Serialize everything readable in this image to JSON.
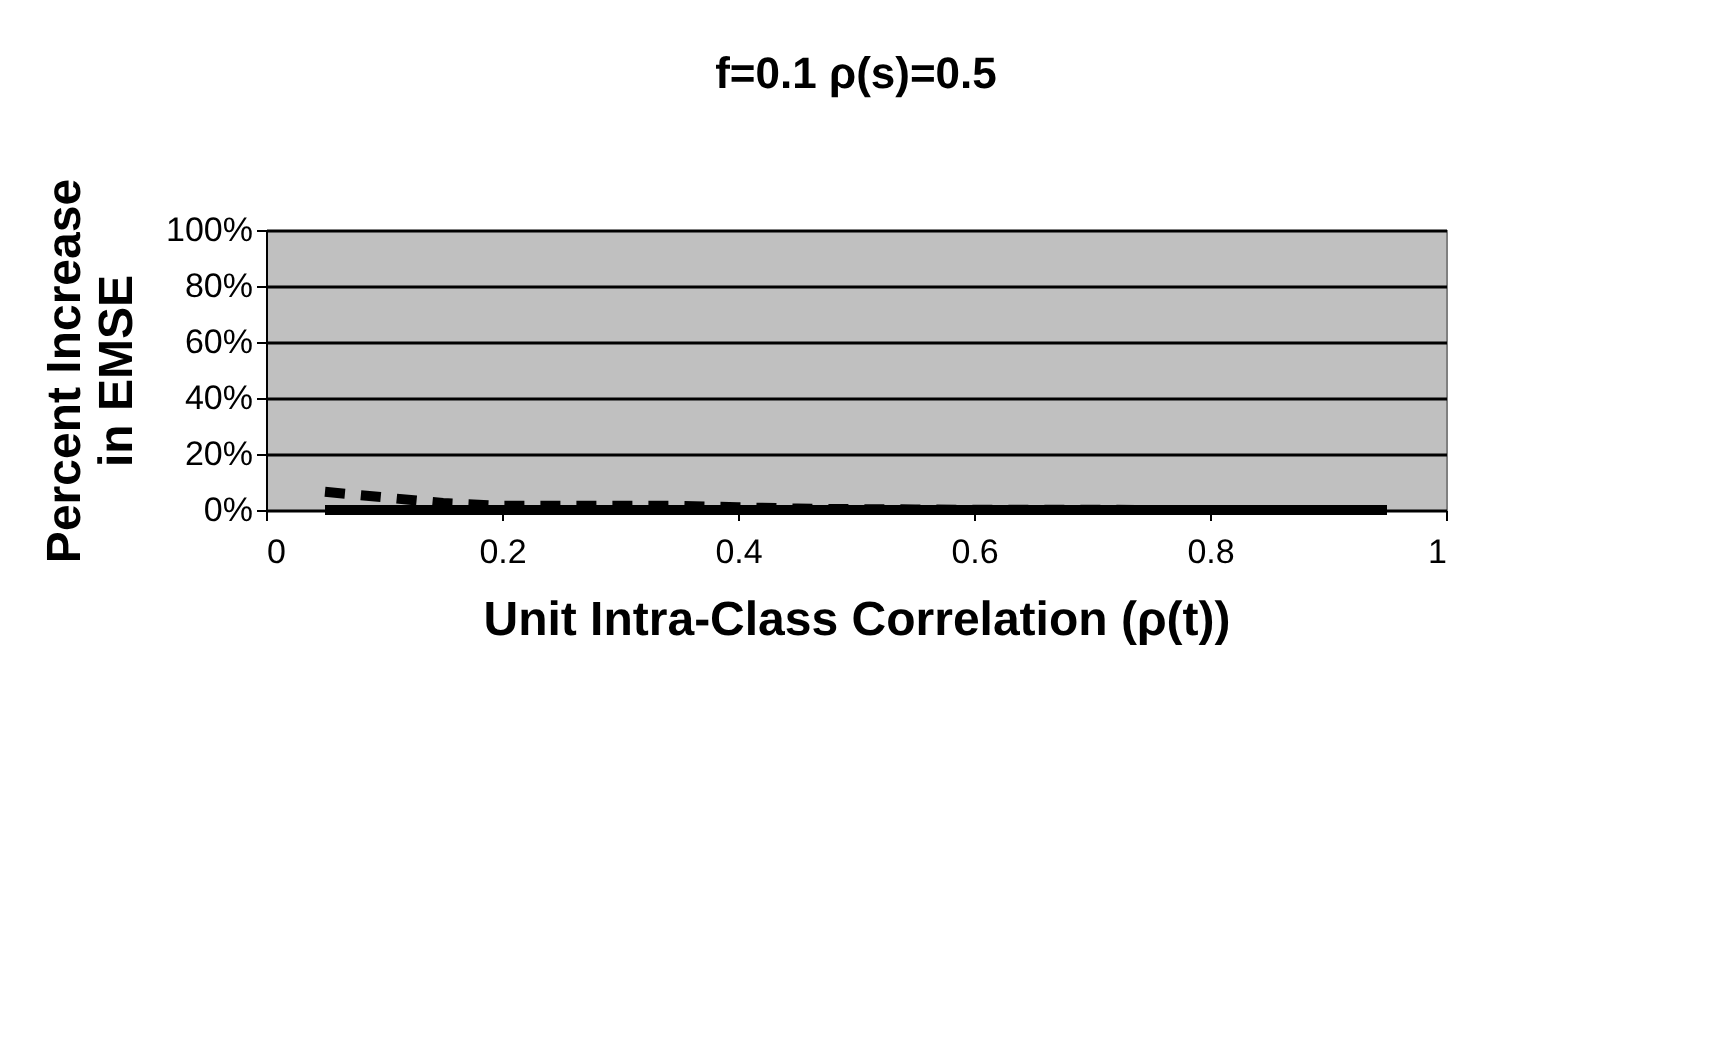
{
  "chart_data": {
    "type": "line",
    "title": "f=0.1     ρ(s)=0.5",
    "xlabel": "Unit Intra-Class Correlation (ρ(t))",
    "ylabel": "Percent Increase in EMSE",
    "x": [
      0.05,
      0.1,
      0.15,
      0.2,
      0.25,
      0.3,
      0.35,
      0.4,
      0.45,
      0.5,
      0.55,
      0.6,
      0.65,
      0.7,
      0.75,
      0.8,
      0.85,
      0.9,
      0.95
    ],
    "series": [
      {
        "color": "#000000",
        "line_style": "solid",
        "values": [
          0,
          0,
          0,
          0,
          0,
          0,
          0,
          0,
          0,
          0,
          0,
          0,
          0,
          0,
          0,
          0,
          0,
          0,
          0
        ]
      },
      {
        "color": "#000000",
        "line_style": "dashed",
        "values": [
          0.065,
          0.045,
          0.025,
          0.015,
          0.015,
          0.015,
          0.015,
          0.01,
          0.005,
          0.003,
          0.002,
          0.001,
          0.001,
          0.001,
          0,
          0,
          0,
          0,
          0
        ]
      }
    ],
    "xlim": [
      0,
      1
    ],
    "xticks": [
      0,
      0.2,
      0.4,
      0.6,
      0.8,
      1
    ],
    "ylim": [
      0,
      1
    ],
    "yticks": [
      {
        "value": 0,
        "label": "0%"
      },
      {
        "value": 0.2,
        "label": "20%"
      },
      {
        "value": 0.4,
        "label": "40%"
      },
      {
        "value": 0.6,
        "label": "60%"
      },
      {
        "value": 0.8,
        "label": "80%"
      },
      {
        "value": 1,
        "label": "100%"
      }
    ],
    "grid": "y",
    "marker": "none"
  }
}
